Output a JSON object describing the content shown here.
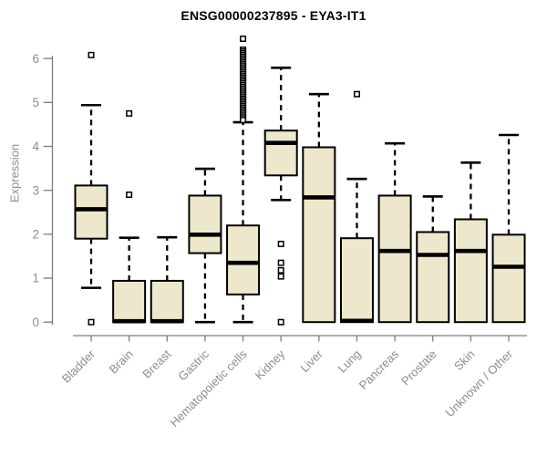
{
  "chart_data": {
    "type": "boxplot",
    "title": "ENSG00000237895 - EYA3-IT1",
    "ylabel": "Expression",
    "xlabel": "",
    "ylim": [
      0,
      6.5
    ],
    "yticks": [
      0,
      1,
      2,
      3,
      4,
      5,
      6
    ],
    "grid": false,
    "legend": "none",
    "categories": [
      "Bladder",
      "Brain",
      "Breast",
      "Gastric",
      "Hematopoietic cells",
      "Kidney",
      "Liver",
      "Lung",
      "Pancreas",
      "Prostate",
      "Skin",
      "Unknown / Other"
    ],
    "boxes": [
      {
        "low": 0.78,
        "q1": 1.9,
        "median": 2.57,
        "q3": 3.11,
        "high": 4.94,
        "outliers": [
          6.08,
          0.0
        ]
      },
      {
        "low": 0.0,
        "q1": 0.0,
        "median": 0.02,
        "q3": 0.94,
        "high": 1.92,
        "outliers": [
          4.75,
          2.9
        ]
      },
      {
        "low": 0.0,
        "q1": 0.0,
        "median": 0.02,
        "q3": 0.94,
        "high": 1.93,
        "outliers": []
      },
      {
        "low": 0.0,
        "q1": 1.57,
        "median": 1.99,
        "q3": 2.88,
        "high": 3.49,
        "outliers": []
      },
      {
        "low": 0.0,
        "q1": 0.63,
        "median": 1.35,
        "q3": 2.2,
        "high": 4.55,
        "outliers": [
          6.45,
          6.2,
          6.16,
          6.12,
          6.08,
          6.04,
          6.0,
          5.96,
          5.92,
          5.88,
          5.84,
          5.8,
          5.76,
          5.72,
          5.68,
          5.64,
          5.6,
          5.56,
          5.52,
          5.48,
          5.44,
          5.4,
          5.36,
          5.32,
          5.28,
          5.24,
          5.2,
          5.16,
          5.12,
          5.08,
          5.04,
          5.0,
          4.96,
          4.92,
          4.88,
          4.84,
          4.8,
          4.76,
          4.72,
          4.68,
          4.64,
          4.6
        ]
      },
      {
        "low": 2.78,
        "q1": 3.34,
        "median": 4.08,
        "q3": 4.36,
        "high": 5.79,
        "outliers": [
          1.78,
          1.35,
          1.18,
          1.04,
          0.0
        ]
      },
      {
        "low": 0.0,
        "q1": 0.0,
        "median": 2.84,
        "q3": 3.98,
        "high": 5.19,
        "outliers": []
      },
      {
        "low": 0.0,
        "q1": 0.0,
        "median": 0.03,
        "q3": 1.91,
        "high": 3.26,
        "outliers": [
          5.19
        ]
      },
      {
        "low": 0.0,
        "q1": 0.0,
        "median": 1.62,
        "q3": 2.88,
        "high": 4.07,
        "outliers": []
      },
      {
        "low": 0.0,
        "q1": 0.0,
        "median": 1.53,
        "q3": 2.05,
        "high": 2.86,
        "outliers": []
      },
      {
        "low": 0.0,
        "q1": 0.0,
        "median": 1.62,
        "q3": 2.34,
        "high": 3.63,
        "outliers": []
      },
      {
        "low": 0.0,
        "q1": 0.0,
        "median": 1.26,
        "q3": 1.99,
        "high": 4.26,
        "outliers": []
      }
    ],
    "colors": {
      "box_fill": "#EDE7CB",
      "box_stroke": "#000000",
      "median": "#000000",
      "whisker": "#000000",
      "outlier_stroke": "#000000",
      "outlier_fill": "#FFFFFF",
      "axis": "#7D7D7D",
      "label_text": "#8C8C8C",
      "title_text": "#000000",
      "background": "#FFFFFF"
    }
  }
}
